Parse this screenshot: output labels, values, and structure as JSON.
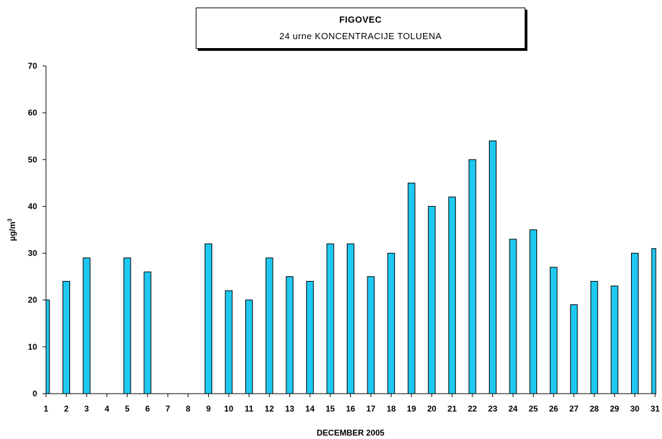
{
  "chart_data": {
    "type": "bar",
    "title": "FIGOVEC",
    "subtitle": "24 urne KONCENTRACIJE TOLUENA",
    "xlabel": "DECEMBER  2005",
    "ylabel": "µg/m³",
    "ylabel_base": "µg/m",
    "ylabel_sup": "3",
    "ylim": [
      0,
      70
    ],
    "yticks": [
      0,
      10,
      20,
      30,
      40,
      50,
      60,
      70
    ],
    "bar_color": "#1ec8f0",
    "grid": false,
    "categories": [
      "1",
      "2",
      "3",
      "4",
      "5",
      "6",
      "7",
      "8",
      "9",
      "10",
      "11",
      "12",
      "13",
      "14",
      "15",
      "16",
      "17",
      "18",
      "19",
      "20",
      "21",
      "22",
      "23",
      "24",
      "25",
      "26",
      "27",
      "28",
      "29",
      "30",
      "31"
    ],
    "values": [
      20,
      24,
      29,
      null,
      29,
      26,
      null,
      null,
      32,
      22,
      20,
      29,
      25,
      24,
      32,
      32,
      25,
      30,
      45,
      40,
      42,
      50,
      54,
      33,
      35,
      27,
      19,
      24,
      23,
      30,
      31
    ]
  }
}
